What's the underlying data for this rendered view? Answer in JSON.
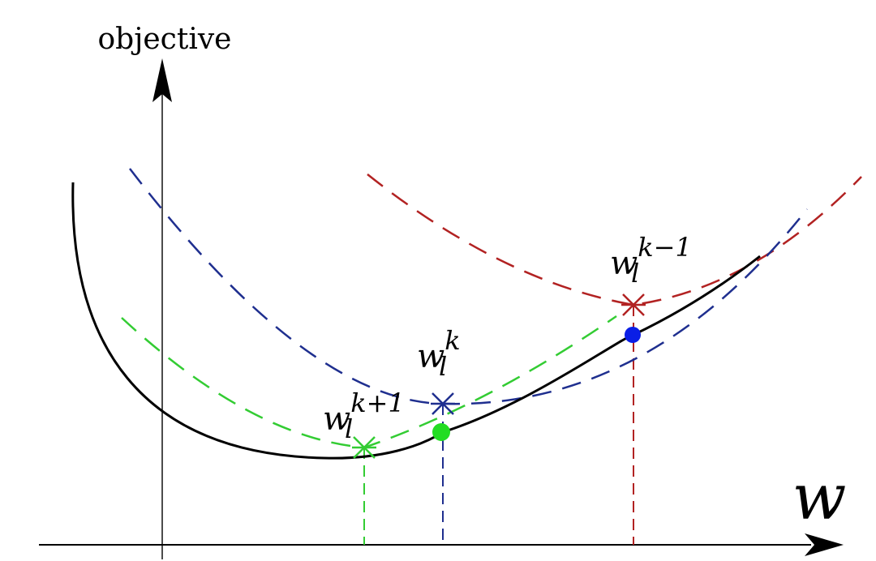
{
  "axes": {
    "y_label": "objective",
    "x_label": "w"
  },
  "colors": {
    "objective_curve": "#000000",
    "blue": "#1f2f8f",
    "green": "#33cc33",
    "red": "#b22222",
    "blue_dot": "#0a1ee6",
    "green_dot": "#22dd22"
  },
  "labels": {
    "w_k_minus_1": {
      "base": "w",
      "sub": "l",
      "sup": "k−1"
    },
    "w_k": {
      "base": "w",
      "sub": "l",
      "sup": "k"
    },
    "w_k_plus_1": {
      "base": "w",
      "sub": "l",
      "sup": "k+1"
    }
  }
}
